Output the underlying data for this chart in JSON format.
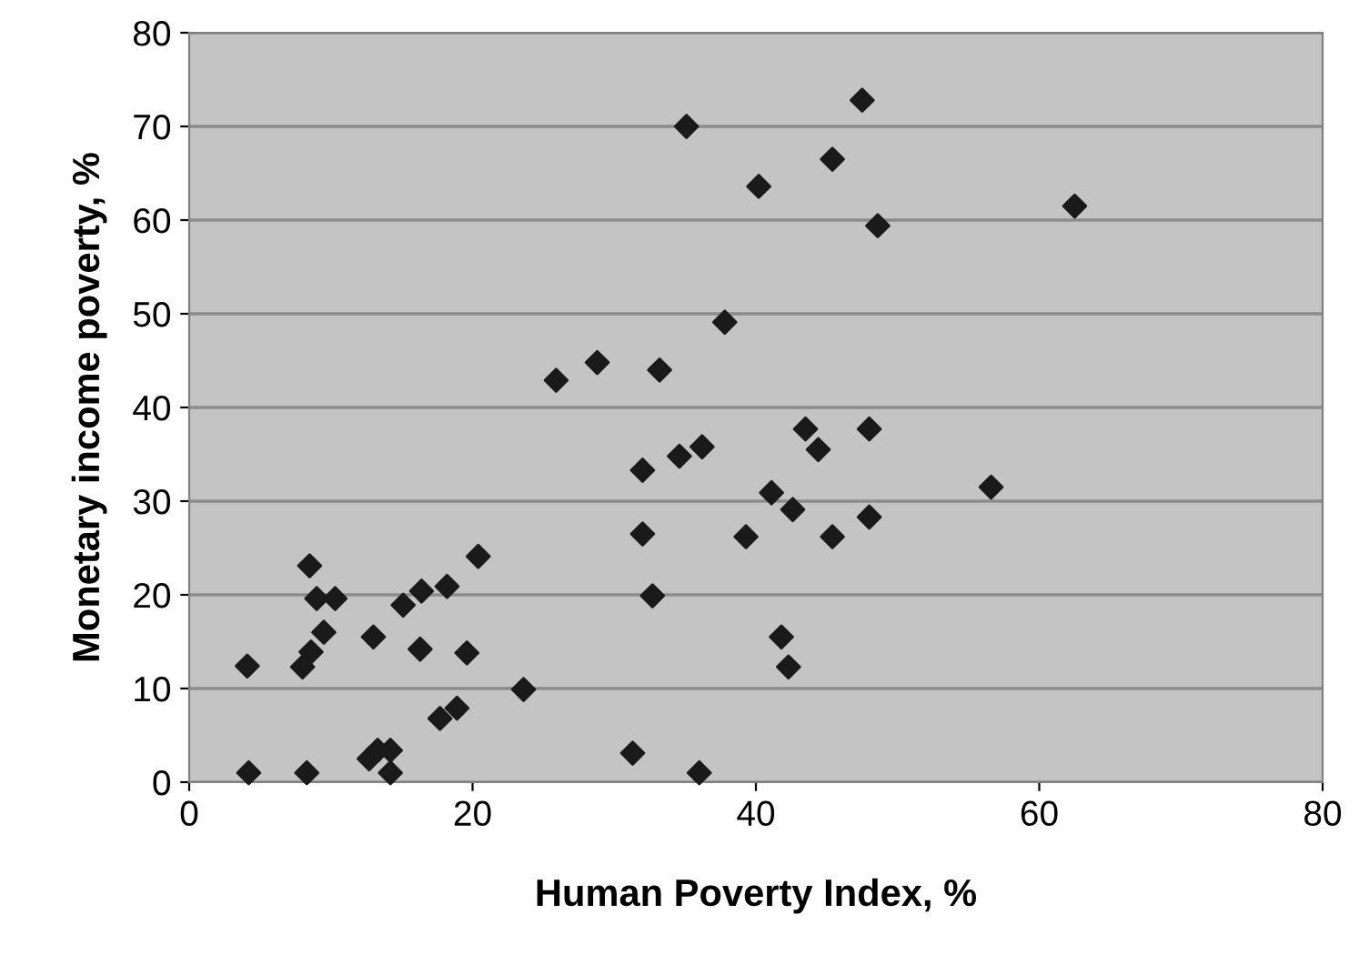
{
  "chart_data": {
    "type": "scatter",
    "xlabel": "Human Poverty Index, %",
    "ylabel": "Monetary income poverty, %",
    "x": [
      4.1,
      4.2,
      8.5,
      9.0,
      10.3,
      9.5,
      8.6,
      8.0,
      8.3,
      13.0,
      15.1,
      16.4,
      18.2,
      20.4,
      16.3,
      19.6,
      23.6,
      17.7,
      18.9,
      12.7,
      13.3,
      14.2,
      14.2,
      37.8,
      25.9,
      28.8,
      33.2,
      43.5,
      48.0,
      44.4,
      32.0,
      34.6,
      36.2,
      41.1,
      42.6,
      48.0,
      32.0,
      39.3,
      45.4,
      32.7,
      41.8,
      42.3,
      31.3,
      36.0,
      35.1,
      47.5,
      45.4,
      40.2,
      48.6,
      62.5,
      56.6
    ],
    "series": [
      {
        "color": "#1a1a1a",
        "values": [
          12.4,
          1.0,
          23.1,
          19.6,
          19.6,
          16.0,
          13.9,
          12.3,
          1.0,
          15.5,
          18.9,
          20.4,
          20.9,
          24.1,
          14.2,
          13.8,
          9.9,
          6.8,
          7.9,
          2.5,
          3.4,
          3.4,
          1.0,
          49.1,
          42.9,
          44.8,
          44.0,
          37.7,
          37.7,
          35.5,
          33.3,
          34.8,
          35.8,
          30.9,
          29.1,
          28.3,
          26.5,
          26.2,
          26.2,
          19.9,
          15.5,
          12.3,
          3.1,
          1.0,
          70.0,
          72.8,
          66.5,
          63.6,
          59.4,
          61.5,
          31.5
        ]
      }
    ],
    "xlim": [
      0,
      80
    ],
    "ylim": [
      0,
      80
    ],
    "xticks": [
      0,
      20,
      40,
      60,
      80
    ],
    "yticks": [
      0,
      10,
      20,
      30,
      40,
      50,
      60,
      70,
      80
    ],
    "grid": "y",
    "marker": "diamond"
  }
}
